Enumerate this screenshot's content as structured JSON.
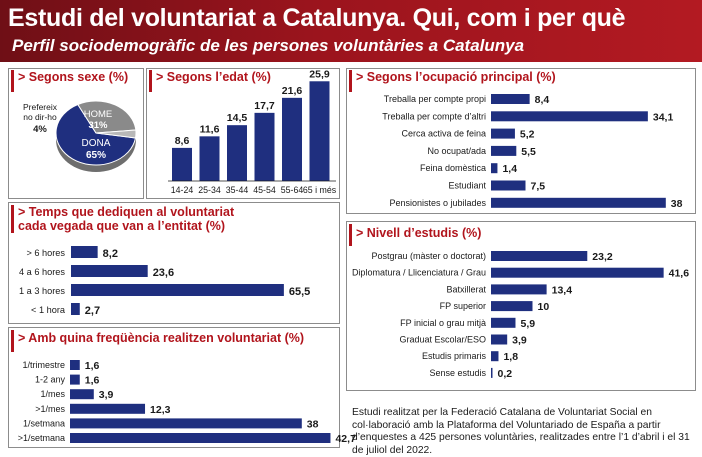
{
  "header": {
    "title": "Estudi del voluntariat a Catalunya. Qui, com i per què",
    "subtitle": "Perfil sociodemogràfic de les persones voluntàries a Catalunya"
  },
  "colors": {
    "accent": "#b1141c",
    "bar": "#1f2f7f",
    "header_bg": "#9b141d"
  },
  "note": "Estudi realitzat per la Federació Catalana de Voluntariat Social en col·laboració amb la Plataforma del Voluntariado de España a partir d’enquestes a 425 persones voluntàries, realitzades entre l’1 d’abril i el 31 de juliol del 2022.",
  "chart_data": [
    {
      "id": "sexe",
      "type": "pie",
      "title": "> Segons sexe (%)",
      "slices": [
        {
          "label": "DONA",
          "value": 65,
          "display": "65%",
          "color": "#1f2f7f"
        },
        {
          "label": "HOME",
          "value": 31,
          "display": "31%",
          "color": "#8a8a8a"
        },
        {
          "label": "Prefereix no dir-ho",
          "value": 4,
          "display": "4%",
          "color": "#b8b8b8"
        }
      ]
    },
    {
      "id": "edat",
      "type": "bar",
      "title": "> Segons l’edat (%)",
      "categories": [
        "14-24",
        "25-34",
        "35-44",
        "45-54",
        "55-64",
        "65 i més"
      ],
      "values": [
        8.6,
        11.6,
        14.5,
        17.7,
        21.6,
        25.9
      ],
      "labels": [
        "8,6",
        "11,6",
        "14,5",
        "17,7",
        "21,6",
        "25,9"
      ]
    },
    {
      "id": "temps",
      "type": "bar",
      "title": "> Temps que dediquen al voluntariat cada vegada que van a l’entitat (%)",
      "title_lines": [
        "> Temps que dediquen al voluntariat",
        "cada vegada que van a l’entitat (%)"
      ],
      "categories": [
        "> 6 hores",
        "4 a 6 hores",
        "1 a 3 hores",
        "< 1 hora"
      ],
      "values": [
        8.2,
        23.6,
        65.5,
        2.7
      ],
      "labels": [
        "8,2",
        "23,6",
        "65,5",
        "2,7"
      ]
    },
    {
      "id": "frequencia",
      "type": "bar",
      "title": "> Amb quina freqüència realitzen voluntariat (%)",
      "categories": [
        "1/trimestre",
        "1-2 any",
        "1/mes",
        ">1/mes",
        "1/setmana",
        ">1/setmana"
      ],
      "values": [
        1.6,
        1.6,
        3.9,
        12.3,
        38,
        42.7
      ],
      "labels": [
        "1,6",
        "1,6",
        "3,9",
        "12,3",
        "38",
        "42,7"
      ]
    },
    {
      "id": "ocupacio",
      "type": "bar",
      "title": "> Segons l’ocupació principal (%)",
      "categories": [
        "Treballa per compte propi",
        "Treballa per compte d’altri",
        "Cerca activa de feina",
        "No ocupat/ada",
        "Feina domèstica",
        "Estudiant",
        "Pensionistes o jubilades"
      ],
      "values": [
        8.4,
        34.1,
        5.2,
        5.5,
        1.4,
        7.5,
        38
      ],
      "labels": [
        "8,4",
        "34,1",
        "5,2",
        "5,5",
        "1,4",
        "7,5",
        "38"
      ]
    },
    {
      "id": "estudis",
      "type": "bar",
      "title": "> Nivell d’estudis (%)",
      "categories": [
        "Postgrau (màster o doctorat)",
        "Diplomatura / Llicenciatura / Grau",
        "Batxillerat",
        "FP superior",
        "FP inicial o grau mitjà",
        "Graduat Escolar/ESO",
        "Estudis primaris",
        "Sense estudis"
      ],
      "values": [
        23.2,
        41.6,
        13.4,
        10,
        5.9,
        3.9,
        1.8,
        0.2
      ],
      "labels": [
        "23,2",
        "41,6",
        "13,4",
        "10",
        "5,9",
        "3,9",
        "1,8",
        "0,2"
      ]
    }
  ]
}
